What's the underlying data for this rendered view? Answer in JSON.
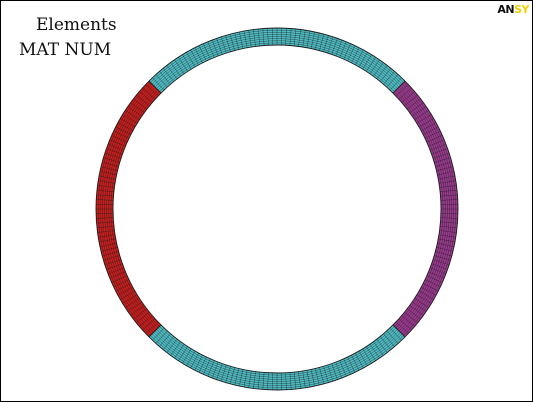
{
  "plot": {
    "title_line1": "Elements",
    "title_line2": "MAT  NUM"
  },
  "logo": {
    "part1": "AN",
    "part2": "SY",
    "part1_color": "#111111",
    "part2_color": "#f0d000"
  },
  "mesh": {
    "material_colors": {
      "mat_1": "#4fbcc4",
      "mat_2": "#c81e1e",
      "mat_3": "#9a3a8e"
    },
    "grid_line_color": "#1a1a1a",
    "background": "#ffffff",
    "radial_divisions": 8,
    "circumferential_divisions": 240
  }
}
